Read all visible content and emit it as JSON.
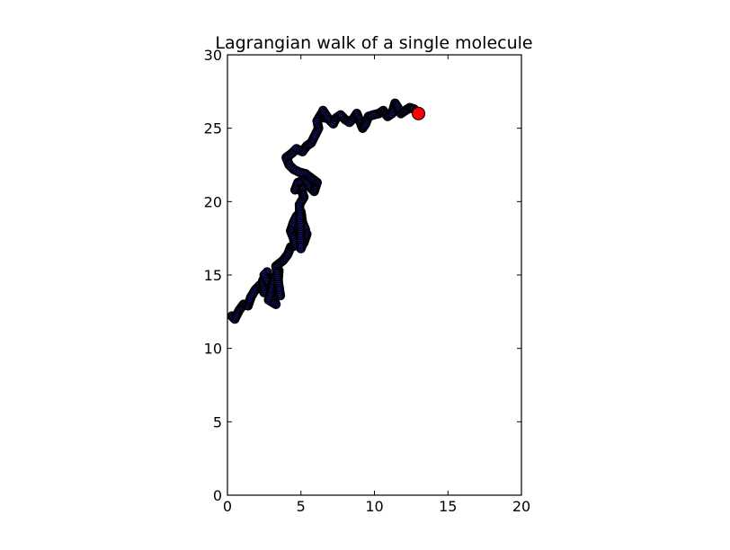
{
  "chart_data": {
    "type": "scatter",
    "title": "Lagrangian walk of a single molecule",
    "xlabel": "",
    "ylabel": "",
    "xlim": [
      0,
      20
    ],
    "ylim": [
      0,
      30
    ],
    "xticks": [
      0,
      5,
      10,
      15,
      20
    ],
    "yticks": [
      0,
      5,
      10,
      15,
      20,
      25,
      30
    ],
    "grid": false,
    "series": [
      {
        "marker_face": "#1f1fbf",
        "marker_edge": "#000000",
        "points": [
          [
            0.3,
            12.2
          ],
          [
            0.5,
            12.0
          ],
          [
            0.8,
            12.6
          ],
          [
            1.1,
            13.0
          ],
          [
            1.4,
            12.9
          ],
          [
            1.6,
            13.5
          ],
          [
            1.9,
            14.0
          ],
          [
            2.2,
            14.3
          ],
          [
            2.5,
            13.8
          ],
          [
            2.4,
            14.6
          ],
          [
            2.7,
            15.2
          ],
          [
            2.5,
            15.0
          ],
          [
            2.9,
            14.2
          ],
          [
            3.1,
            13.5
          ],
          [
            3.3,
            13.0
          ],
          [
            2.8,
            13.3
          ],
          [
            3.2,
            14.8
          ],
          [
            3.5,
            15.3
          ],
          [
            3.4,
            14.0
          ],
          [
            3.6,
            13.6
          ],
          [
            3.3,
            15.6
          ],
          [
            3.8,
            16.0
          ],
          [
            4.1,
            16.4
          ],
          [
            4.3,
            16.9
          ],
          [
            4.6,
            17.0
          ],
          [
            4.5,
            17.5
          ],
          [
            4.3,
            18.0
          ],
          [
            4.5,
            18.6
          ],
          [
            4.7,
            19.0
          ],
          [
            5.0,
            19.3
          ],
          [
            5.1,
            18.6
          ],
          [
            5.3,
            18.1
          ],
          [
            5.0,
            17.6
          ],
          [
            5.2,
            17.2
          ],
          [
            5.4,
            17.8
          ],
          [
            5.0,
            16.8
          ],
          [
            4.9,
            19.8
          ],
          [
            5.2,
            20.3
          ],
          [
            5.0,
            20.9
          ],
          [
            4.6,
            20.8
          ],
          [
            4.8,
            21.3
          ],
          [
            5.3,
            21.5
          ],
          [
            5.6,
            21.0
          ],
          [
            5.9,
            20.7
          ],
          [
            6.1,
            21.3
          ],
          [
            5.7,
            21.6
          ],
          [
            5.3,
            21.9
          ],
          [
            4.9,
            22.0
          ],
          [
            4.5,
            22.2
          ],
          [
            4.2,
            22.5
          ],
          [
            4.0,
            23.0
          ],
          [
            4.4,
            23.3
          ],
          [
            4.7,
            23.6
          ],
          [
            5.1,
            23.4
          ],
          [
            5.4,
            23.8
          ],
          [
            5.7,
            24.0
          ],
          [
            6.0,
            24.6
          ],
          [
            6.2,
            25.0
          ],
          [
            6.1,
            25.5
          ],
          [
            6.4,
            26.0
          ],
          [
            6.6,
            25.7
          ],
          [
            6.5,
            26.2
          ],
          [
            6.9,
            25.6
          ],
          [
            7.2,
            25.3
          ],
          [
            7.4,
            25.7
          ],
          [
            7.7,
            25.9
          ],
          [
            8.0,
            25.6
          ],
          [
            8.3,
            25.4
          ],
          [
            8.6,
            25.7
          ],
          [
            8.8,
            26.0
          ],
          [
            9.0,
            25.5
          ],
          [
            9.2,
            25.0
          ],
          [
            9.4,
            25.3
          ],
          [
            9.6,
            25.8
          ],
          [
            9.9,
            25.9
          ],
          [
            10.3,
            26.0
          ],
          [
            10.6,
            26.2
          ],
          [
            10.9,
            25.8
          ],
          [
            11.2,
            26.0
          ],
          [
            11.4,
            26.7
          ],
          [
            11.6,
            26.4
          ],
          [
            11.8,
            26.0
          ],
          [
            12.1,
            26.2
          ],
          [
            12.4,
            26.4
          ],
          [
            12.7,
            26.3
          ],
          [
            12.9,
            26.1
          ],
          [
            13.0,
            26.0
          ]
        ]
      }
    ],
    "end_marker": {
      "x": 13.0,
      "y": 26.0,
      "color": "#ff0000"
    }
  }
}
